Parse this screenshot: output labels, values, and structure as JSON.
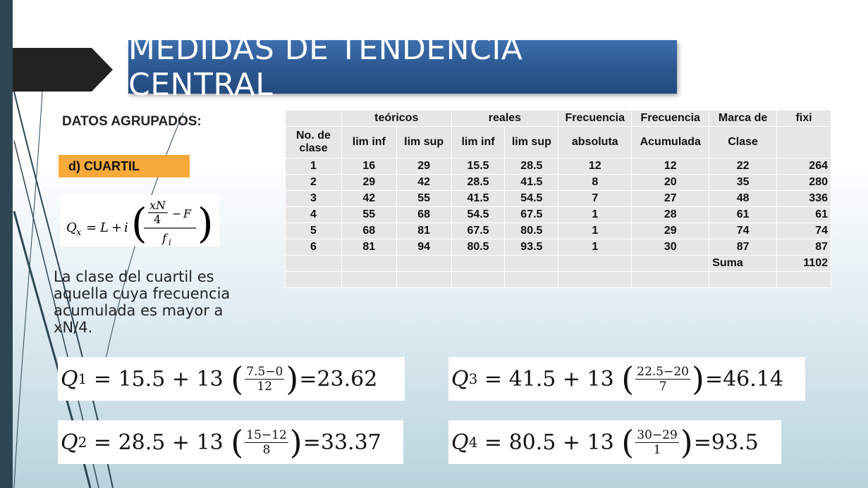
{
  "slide": {
    "title": "MEDIDAS DE TENDENCIA CENTRAL",
    "section_label": "DATOS AGRUPADOS:",
    "subsection_label": "d) CUARTIL",
    "formula": "Q_x = L + i((xN/4 − F)/f_i)",
    "description": "La clase del cuartil es aquella cuya frecuencia acumulada es mayor a xN/4."
  },
  "table": {
    "header1": [
      "",
      "teóricos",
      "reales",
      "Frecuencia",
      "Frecuencia",
      "Marca de",
      "fixi"
    ],
    "header2": [
      "No. de clase",
      "lim inf",
      "lim sup",
      "lim inf",
      "lim sup",
      "absoluta",
      "Acumulada",
      "Clase",
      ""
    ],
    "rows": [
      [
        "1",
        "16",
        "29",
        "15.5",
        "28.5",
        "12",
        "12",
        "22",
        "264"
      ],
      [
        "2",
        "29",
        "42",
        "28.5",
        "41.5",
        "8",
        "20",
        "35",
        "280"
      ],
      [
        "3",
        "42",
        "55",
        "41.5",
        "54.5",
        "7",
        "27",
        "48",
        "336"
      ],
      [
        "4",
        "55",
        "68",
        "54.5",
        "67.5",
        "1",
        "28",
        "61",
        "61"
      ],
      [
        "5",
        "68",
        "81",
        "67.5",
        "80.5",
        "1",
        "29",
        "74",
        "74"
      ],
      [
        "6",
        "81",
        "94",
        "80.5",
        "93.5",
        "1",
        "30",
        "87",
        "87"
      ]
    ],
    "sum_label": "Suma",
    "sum_value": "1102"
  },
  "equations": [
    {
      "sub": "1",
      "lhs": "= 15.5 + 13",
      "num": "7.5−0",
      "den": "12",
      "result": "=23.62"
    },
    {
      "sub": "2",
      "lhs": "= 28.5 + 13",
      "num": "15−12",
      "den": "8",
      "result": "=33.37"
    },
    {
      "sub": "3",
      "lhs": "= 41.5 + 13",
      "num": "22.5−20",
      "den": "7",
      "result": "=46.14"
    },
    {
      "sub": "4",
      "lhs": "= 80.5 + 13",
      "num": "30−29",
      "den": "1",
      "result": "=93.5"
    }
  ]
}
